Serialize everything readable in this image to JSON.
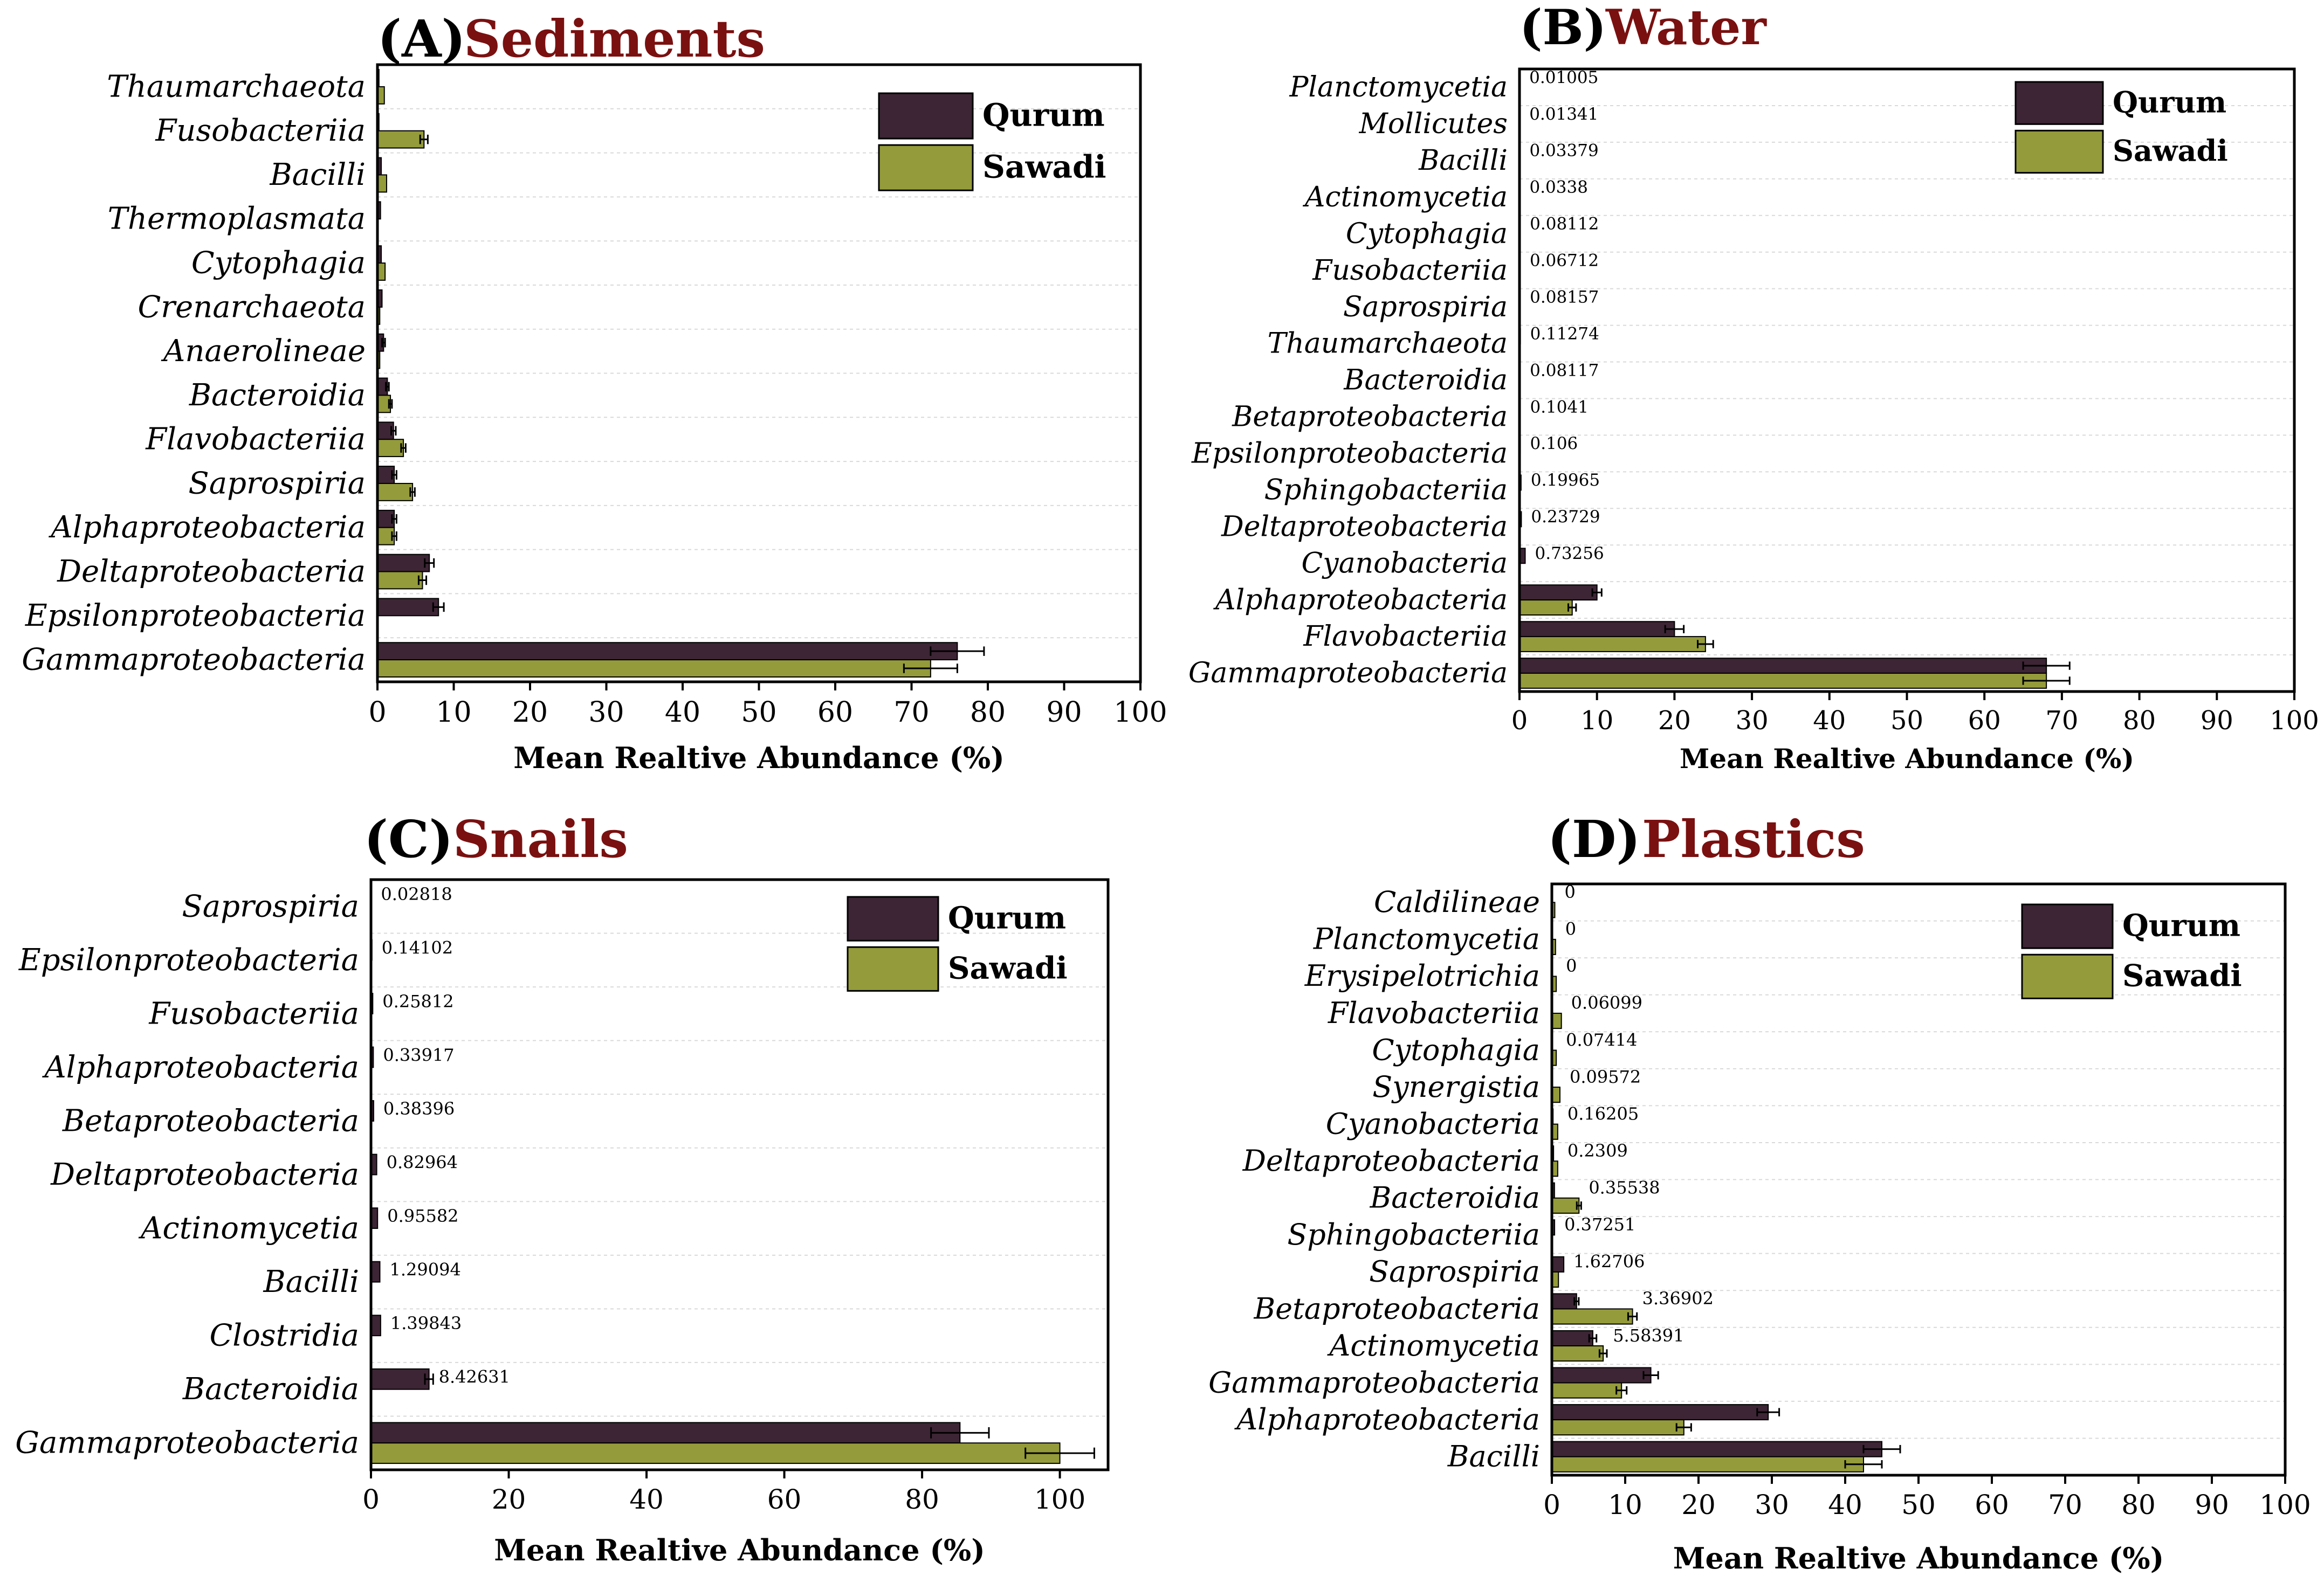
{
  "figure": {
    "legend": {
      "qurum": "Qurum",
      "sawadi": "Sawadi"
    },
    "colors": {
      "qurum": "#3d2535",
      "sawadi": "#949b3a",
      "title_accent": "#7a1010",
      "grid": "#d9d9d9"
    }
  },
  "chart_data": [
    {
      "panel": "A",
      "type": "bar",
      "orientation": "horizontal",
      "title_letter": "(A)",
      "title": "Sediments",
      "xlabel": "Mean Realtive Abundance (%)",
      "ylabel": "",
      "xlim": [
        0,
        100
      ],
      "xticks": [
        0,
        10,
        20,
        30,
        40,
        50,
        60,
        70,
        80,
        90,
        100
      ],
      "legend_position": "top-right",
      "categories": [
        "Thaumarchaeota",
        "Fusobacteriia",
        "Bacilli",
        "Thermoplasmata",
        "Cytophagia",
        "Crenarchaeota",
        "Anaerolineae",
        "Bacteroidia",
        "Flavobacteriia",
        "Saprospiria",
        "Alphaproteobacteria",
        "Deltaproteobacteria",
        "Epsilonproteobacteria",
        "Gammaproteobacteria"
      ],
      "series": [
        {
          "name": "Qurum",
          "values": [
            0.2,
            0.2,
            0.5,
            0.4,
            0.5,
            0.6,
            0.8,
            1.3,
            2.1,
            2.2,
            2.2,
            6.8,
            8.0,
            76.0
          ],
          "errors": [
            0,
            0,
            0,
            0,
            0,
            0,
            0.2,
            0.2,
            0.3,
            0.3,
            0.3,
            0.6,
            0.7,
            3.5
          ]
        },
        {
          "name": "Sawadi",
          "values": [
            0.9,
            6.1,
            1.2,
            0.1,
            1.0,
            0.3,
            0.3,
            1.7,
            3.4,
            4.6,
            2.2,
            5.9,
            0.1,
            72.5
          ],
          "errors": [
            0,
            0.5,
            0,
            0,
            0,
            0,
            0,
            0.2,
            0.3,
            0.3,
            0.3,
            0.5,
            0,
            3.5
          ]
        }
      ],
      "value_labels": []
    },
    {
      "panel": "B",
      "type": "bar",
      "orientation": "horizontal",
      "title_letter": "(B)",
      "title": "Water",
      "xlabel": "Mean Realtive Abundance (%)",
      "ylabel": "",
      "xlim": [
        0,
        100
      ],
      "xticks": [
        0,
        10,
        20,
        30,
        40,
        50,
        60,
        70,
        80,
        90,
        100
      ],
      "legend_position": "top-right",
      "categories": [
        "Planctomycetia",
        "Mollicutes",
        "Bacilli",
        "Actinomycetia",
        "Cytophagia",
        "Fusobacteriia",
        "Saprospiria",
        "Thaumarchaeota",
        "Bacteroidia",
        "Betaproteobacteria",
        "Epsilonproteobacteria",
        "Sphingobacteriia",
        "Deltaproteobacteria",
        "Cyanobacteria",
        "Alphaproteobacteria",
        "Flavobacteriia",
        "Gammaproteobacteria"
      ],
      "series": [
        {
          "name": "Qurum",
          "values": [
            0.01005,
            0.01341,
            0.03379,
            0.0338,
            0.08112,
            0.06712,
            0.08157,
            0.11274,
            0.08117,
            0.1041,
            0.106,
            0.19965,
            0.23729,
            0.73256,
            10.0,
            20.0,
            68.0
          ],
          "errors": [
            0,
            0,
            0,
            0,
            0,
            0,
            0,
            0,
            0,
            0,
            0,
            0,
            0,
            0,
            0.6,
            1.2,
            3.0
          ]
        },
        {
          "name": "Sawadi",
          "values": [
            0,
            0,
            0,
            0,
            0,
            0,
            0,
            0,
            0,
            0,
            0,
            0,
            0,
            0,
            6.8,
            24.0,
            68.0
          ],
          "errors": [
            0,
            0,
            0,
            0,
            0,
            0,
            0,
            0,
            0,
            0,
            0,
            0,
            0,
            0,
            0.5,
            1.0,
            3.0
          ]
        }
      ],
      "value_labels": [
        "0.01005",
        "0.01341",
        "0.03379",
        "0.0338",
        "0.08112",
        "0.06712",
        "0.08157",
        "0.11274",
        "0.08117",
        "0.1041",
        "0.106",
        "0.19965",
        "0.23729",
        "0.73256",
        "",
        "",
        ""
      ]
    },
    {
      "panel": "C",
      "type": "bar",
      "orientation": "horizontal",
      "title_letter": "(C)",
      "title": "Snails",
      "xlabel": "Mean Realtive Abundance (%)",
      "ylabel": "",
      "xlim": [
        0,
        107
      ],
      "xticks": [
        0,
        20,
        40,
        60,
        80,
        100
      ],
      "legend_position": "top-right",
      "categories": [
        "Saprospiria",
        "Epsilonproteobacteria",
        "Fusobacteriia",
        "Alphaproteobacteria",
        "Betaproteobacteria",
        "Deltaproteobacteria",
        "Actinomycetia",
        "Bacilli",
        "Clostridia",
        "Bacteroidia",
        "Gammaproteobacteria"
      ],
      "series": [
        {
          "name": "Qurum",
          "values": [
            0.02818,
            0.14102,
            0.25812,
            0.33917,
            0.38396,
            0.82964,
            0.95582,
            1.29094,
            1.39843,
            8.42631,
            85.5
          ],
          "errors": [
            0,
            0,
            0,
            0,
            0,
            0,
            0,
            0,
            0,
            0.6,
            4.2
          ]
        },
        {
          "name": "Sawadi",
          "values": [
            0,
            0,
            0,
            0,
            0,
            0,
            0,
            0,
            0,
            0,
            100.0
          ],
          "errors": [
            0,
            0,
            0,
            0,
            0,
            0,
            0,
            0,
            0,
            0,
            5.0
          ]
        }
      ],
      "value_labels": [
        "0.02818",
        "0.14102",
        "0.25812",
        "0.33917",
        "0.38396",
        "0.82964",
        "0.95582",
        "1.29094",
        "1.39843",
        "8.42631",
        ""
      ]
    },
    {
      "panel": "D",
      "type": "bar",
      "orientation": "horizontal",
      "title_letter": "(D)",
      "title": "Plastics",
      "xlabel": "Mean Realtive Abundance (%)",
      "ylabel": "",
      "xlim": [
        0,
        100
      ],
      "xticks": [
        0,
        10,
        20,
        30,
        40,
        50,
        60,
        70,
        80,
        90,
        100
      ],
      "legend_position": "top-right",
      "categories": [
        "Caldilineae",
        "Planctomycetia",
        "Erysipelotrichia",
        "Flavobacteriia",
        "Cytophagia",
        "Synergistia",
        "Cyanobacteria",
        "Deltaproteobacteria",
        "Bacteroidia",
        "Sphingobacteriia",
        "Saprospiria",
        "Betaproteobacteria",
        "Actinomycetia",
        "Gammaproteobacteria",
        "Alphaproteobacteria",
        "Bacilli"
      ],
      "series": [
        {
          "name": "Qurum",
          "values": [
            0,
            0,
            0,
            0.06099,
            0.07414,
            0.09572,
            0.16205,
            0.2309,
            0.35538,
            0.37251,
            1.62706,
            3.36902,
            5.58391,
            13.5,
            29.5,
            45.0
          ],
          "errors": [
            0,
            0,
            0,
            0,
            0,
            0,
            0,
            0,
            0,
            0,
            0,
            0.3,
            0.5,
            1.0,
            1.5,
            2.5
          ]
        },
        {
          "name": "Sawadi",
          "values": [
            0.4,
            0.5,
            0.6,
            1.3,
            0.6,
            1.1,
            0.8,
            0.8,
            3.7,
            0.1,
            0.9,
            11.0,
            7.0,
            9.5,
            18.0,
            42.5
          ],
          "errors": [
            0,
            0,
            0,
            0,
            0,
            0,
            0,
            0,
            0.3,
            0,
            0,
            0.6,
            0.5,
            0.7,
            1.0,
            2.5
          ]
        }
      ],
      "value_labels": [
        "0",
        "0",
        "0",
        "0.06099",
        "0.07414",
        "0.09572",
        "0.16205",
        "0.2309",
        "0.35538",
        "0.37251",
        "1.62706",
        "3.36902",
        "5.58391",
        "",
        "",
        ""
      ]
    }
  ]
}
